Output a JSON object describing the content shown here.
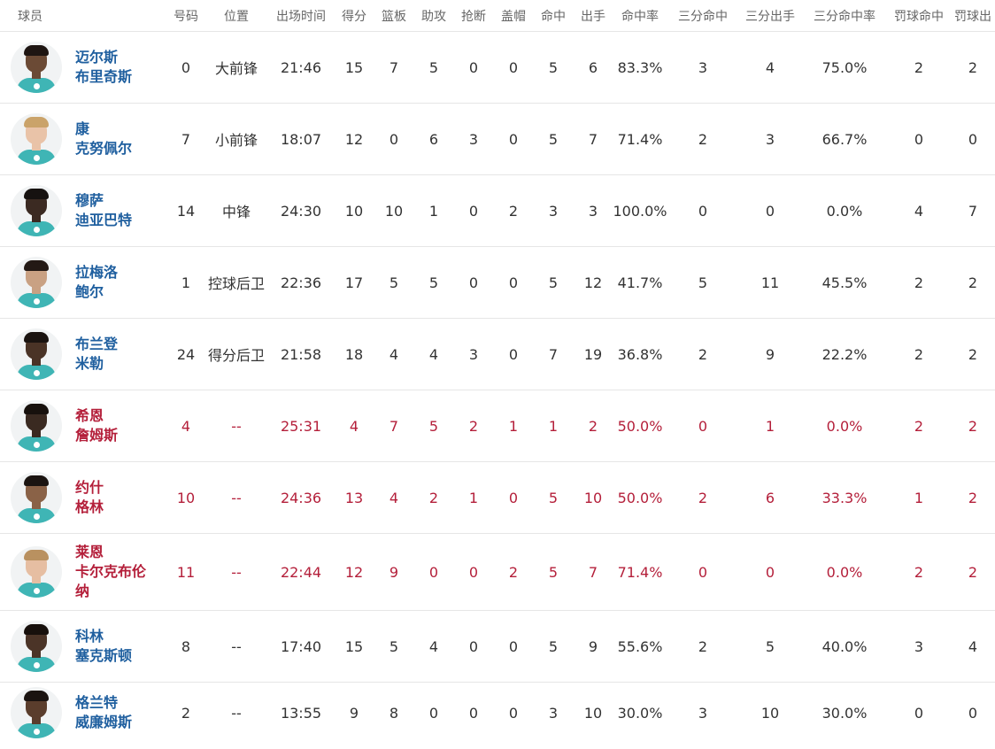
{
  "headers": [
    "球员",
    "号码",
    "位置",
    "出场时间",
    "得分",
    "篮板",
    "助攻",
    "抢断",
    "盖帽",
    "命中",
    "出手",
    "命中率",
    "三分命中",
    "三分出手",
    "三分命中率",
    "罚球命中",
    "罚球出"
  ],
  "colors": {
    "starter_name": "#1f5f9f",
    "highlight": "#b41f3a",
    "normal": "#333333",
    "header": "#666666",
    "jersey": "#3fb5b5"
  },
  "players": [
    {
      "name1": "迈尔斯",
      "name2": "布里奇斯",
      "name3": "",
      "number": "0",
      "position": "大前锋",
      "minutes": "21:46",
      "pts": "15",
      "reb": "7",
      "ast": "5",
      "stl": "0",
      "blk": "0",
      "fgm": "5",
      "fga": "6",
      "fgp": "83.3%",
      "tpm": "3",
      "tpa": "4",
      "tpp": "75.0%",
      "ftm": "2",
      "fta": "2",
      "highlight": false
    },
    {
      "name1": "康",
      "name2": "克努佩尔",
      "name3": "",
      "number": "7",
      "position": "小前锋",
      "minutes": "18:07",
      "pts": "12",
      "reb": "0",
      "ast": "6",
      "stl": "3",
      "blk": "0",
      "fgm": "5",
      "fga": "7",
      "fgp": "71.4%",
      "tpm": "2",
      "tpa": "3",
      "tpp": "66.7%",
      "ftm": "0",
      "fta": "0",
      "highlight": false
    },
    {
      "name1": "穆萨",
      "name2": "迪亚巴特",
      "name3": "",
      "number": "14",
      "position": "中锋",
      "minutes": "24:30",
      "pts": "10",
      "reb": "10",
      "ast": "1",
      "stl": "0",
      "blk": "2",
      "fgm": "3",
      "fga": "3",
      "fgp": "100.0%",
      "tpm": "0",
      "tpa": "0",
      "tpp": "0.0%",
      "ftm": "4",
      "fta": "7",
      "highlight": false
    },
    {
      "name1": "拉梅洛",
      "name2": "鲍尔",
      "name3": "",
      "number": "1",
      "position": "控球后卫",
      "minutes": "22:36",
      "pts": "17",
      "reb": "5",
      "ast": "5",
      "stl": "0",
      "blk": "0",
      "fgm": "5",
      "fga": "12",
      "fgp": "41.7%",
      "tpm": "5",
      "tpa": "11",
      "tpp": "45.5%",
      "ftm": "2",
      "fta": "2",
      "highlight": false
    },
    {
      "name1": "布兰登",
      "name2": "米勒",
      "name3": "",
      "number": "24",
      "position": "得分后卫",
      "minutes": "21:58",
      "pts": "18",
      "reb": "4",
      "ast": "4",
      "stl": "3",
      "blk": "0",
      "fgm": "7",
      "fga": "19",
      "fgp": "36.8%",
      "tpm": "2",
      "tpa": "9",
      "tpp": "22.2%",
      "ftm": "2",
      "fta": "2",
      "highlight": false
    },
    {
      "name1": "希恩",
      "name2": "詹姆斯",
      "name3": "",
      "number": "4",
      "position": "--",
      "minutes": "25:31",
      "pts": "4",
      "reb": "7",
      "ast": "5",
      "stl": "2",
      "blk": "1",
      "fgm": "1",
      "fga": "2",
      "fgp": "50.0%",
      "tpm": "0",
      "tpa": "1",
      "tpp": "0.0%",
      "ftm": "2",
      "fta": "2",
      "highlight": true
    },
    {
      "name1": "约什",
      "name2": "格林",
      "name3": "",
      "number": "10",
      "position": "--",
      "minutes": "24:36",
      "pts": "13",
      "reb": "4",
      "ast": "2",
      "stl": "1",
      "blk": "0",
      "fgm": "5",
      "fga": "10",
      "fgp": "50.0%",
      "tpm": "2",
      "tpa": "6",
      "tpp": "33.3%",
      "ftm": "1",
      "fta": "2",
      "highlight": true
    },
    {
      "name1": "莱恩",
      "name2": "卡尔克布伦",
      "name3": "纳",
      "number": "11",
      "position": "--",
      "minutes": "22:44",
      "pts": "12",
      "reb": "9",
      "ast": "0",
      "stl": "0",
      "blk": "2",
      "fgm": "5",
      "fga": "7",
      "fgp": "71.4%",
      "tpm": "0",
      "tpa": "0",
      "tpp": "0.0%",
      "ftm": "2",
      "fta": "2",
      "highlight": true
    },
    {
      "name1": "科林",
      "name2": "塞克斯顿",
      "name3": "",
      "number": "8",
      "position": "--",
      "minutes": "17:40",
      "pts": "15",
      "reb": "5",
      "ast": "4",
      "stl": "0",
      "blk": "0",
      "fgm": "5",
      "fga": "9",
      "fgp": "55.6%",
      "tpm": "2",
      "tpa": "5",
      "tpp": "40.0%",
      "ftm": "3",
      "fta": "4",
      "highlight": false
    },
    {
      "name1": "格兰特",
      "name2": "威廉姆斯",
      "name3": "",
      "number": "2",
      "position": "--",
      "minutes": "13:55",
      "pts": "9",
      "reb": "8",
      "ast": "0",
      "stl": "0",
      "blk": "0",
      "fgm": "3",
      "fga": "10",
      "fgp": "30.0%",
      "tpm": "3",
      "tpa": "10",
      "tpp": "30.0%",
      "ftm": "0",
      "fta": "0",
      "highlight": false
    }
  ]
}
